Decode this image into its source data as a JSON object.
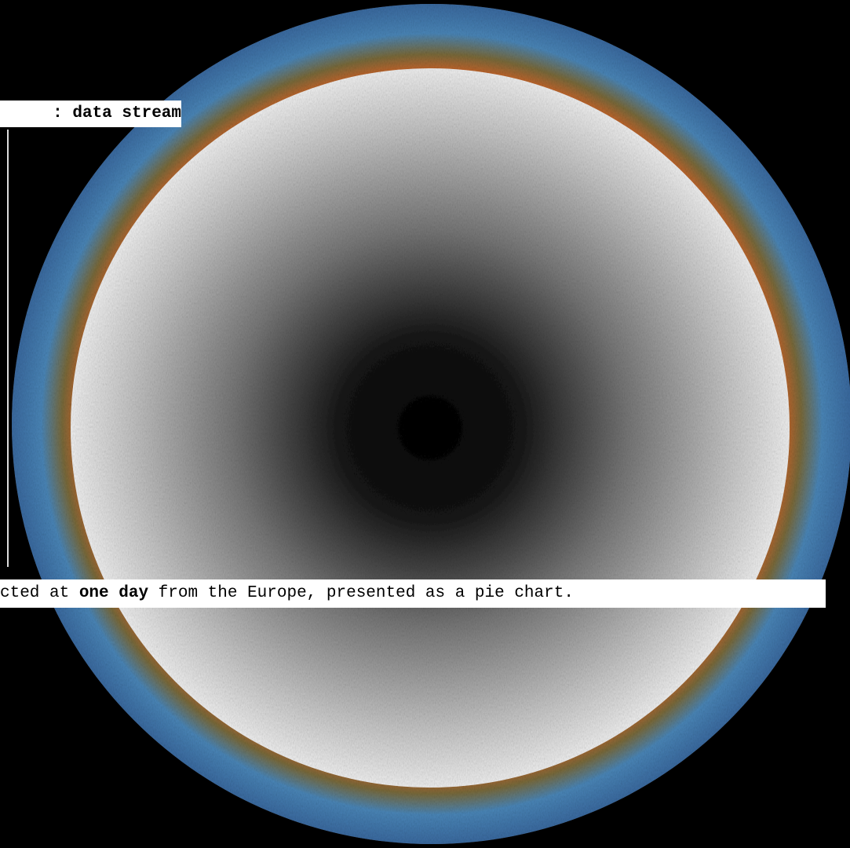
{
  "title": ": data stream",
  "caption": {
    "before": "cted at ",
    "bold": "one day",
    "after": " from the Europe, presented as a pie chart."
  }
}
